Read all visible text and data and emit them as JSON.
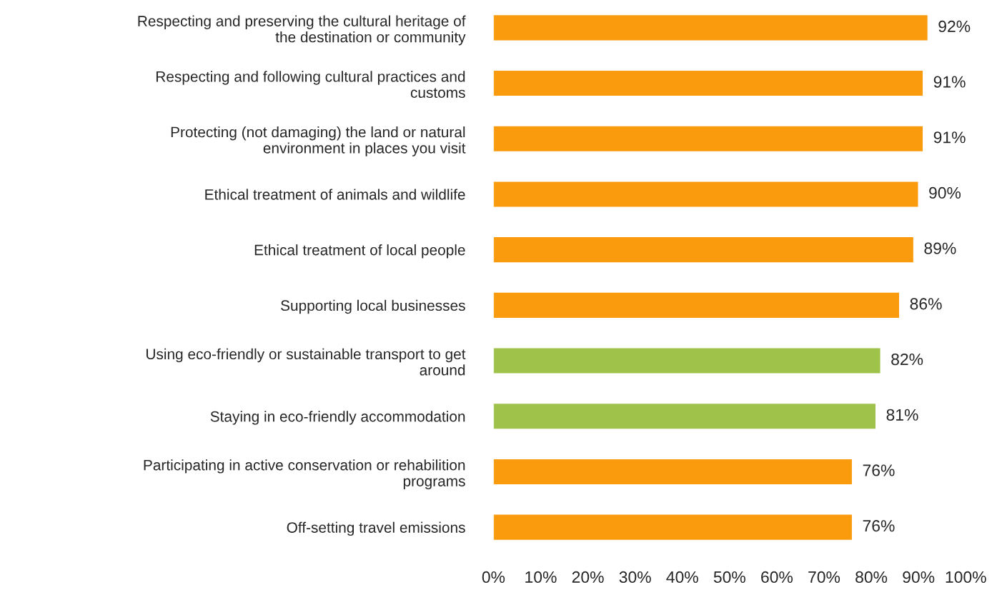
{
  "chart_data": {
    "type": "bar",
    "orientation": "horizontal",
    "categories": [
      "Respecting and preserving the cultural heritage of\nthe destination or community",
      "Respecting and following cultural practices and\ncustoms",
      "Protecting (not damaging) the land or natural\nenvironment in places you visit",
      "Ethical treatment of animals and wildlife",
      "Ethical treatment of local people",
      "Supporting local businesses",
      "Using eco-friendly or sustainable transport to get\naround",
      "Staying in eco-friendly accommodation",
      "Participating in active conservation or rehabilition\nprograms",
      "Off-setting travel emissions"
    ],
    "values": [
      92,
      91,
      91,
      90,
      89,
      86,
      82,
      81,
      76,
      76
    ],
    "colors": [
      "#f99b0c",
      "#f99b0c",
      "#f99b0c",
      "#f99b0c",
      "#f99b0c",
      "#f99b0c",
      "#9fc24a",
      "#9fc24a",
      "#f99b0c",
      "#f99b0c"
    ],
    "value_labels": [
      "92%",
      "91%",
      "91%",
      "90%",
      "89%",
      "86%",
      "82%",
      "81%",
      "76%",
      "76%"
    ],
    "xlim": [
      0,
      100
    ],
    "xticks": [
      {
        "value": 0,
        "label": "0%"
      },
      {
        "value": 10,
        "label": "10%"
      },
      {
        "value": 20,
        "label": "20%"
      },
      {
        "value": 30,
        "label": "30%"
      },
      {
        "value": 40,
        "label": "40%"
      },
      {
        "value": 50,
        "label": "50%"
      },
      {
        "value": 60,
        "label": "60%"
      },
      {
        "value": 70,
        "label": "70%"
      },
      {
        "value": 80,
        "label": "80%"
      },
      {
        "value": 90,
        "label": "90%"
      },
      {
        "value": 100,
        "label": "100%"
      }
    ],
    "grid": false,
    "legend": false
  }
}
